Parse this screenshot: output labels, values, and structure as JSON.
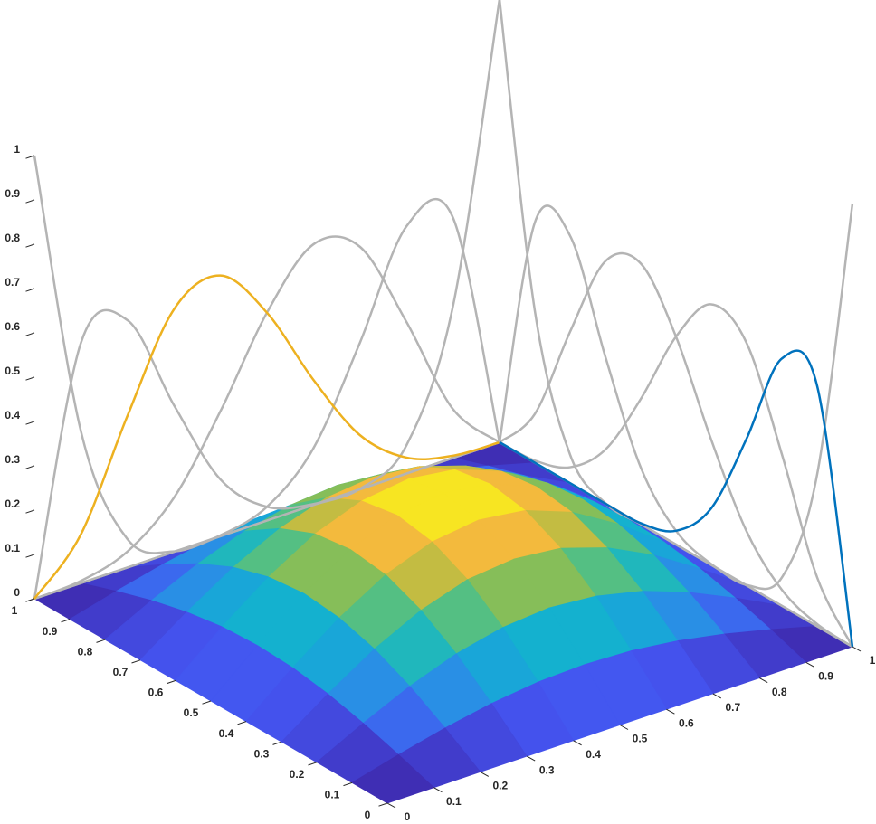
{
  "chart_data": {
    "type": "surface",
    "x": [
      0,
      0.1,
      0.2,
      0.3,
      0.4,
      0.5,
      0.6,
      0.7,
      0.8,
      0.9,
      1
    ],
    "y": [
      0,
      0.1,
      0.2,
      0.3,
      0.4,
      0.5,
      0.6,
      0.7,
      0.8,
      0.9,
      1
    ],
    "z": [
      [
        0,
        0,
        0,
        0,
        0,
        0,
        0,
        0,
        0,
        0,
        0
      ],
      [
        0,
        0.028,
        0.053,
        0.073,
        0.086,
        0.09,
        0.086,
        0.073,
        0.053,
        0.028,
        0
      ],
      [
        0,
        0.053,
        0.101,
        0.139,
        0.163,
        0.172,
        0.163,
        0.139,
        0.101,
        0.053,
        0
      ],
      [
        0,
        0.073,
        0.139,
        0.191,
        0.225,
        0.236,
        0.225,
        0.191,
        0.139,
        0.073,
        0
      ],
      [
        0,
        0.086,
        0.163,
        0.225,
        0.264,
        0.278,
        0.264,
        0.225,
        0.163,
        0.086,
        0
      ],
      [
        0,
        0.09,
        0.172,
        0.236,
        0.278,
        0.292,
        0.278,
        0.236,
        0.172,
        0.09,
        0
      ],
      [
        0,
        0.086,
        0.163,
        0.225,
        0.264,
        0.278,
        0.264,
        0.225,
        0.163,
        0.086,
        0
      ],
      [
        0,
        0.073,
        0.139,
        0.191,
        0.225,
        0.236,
        0.225,
        0.191,
        0.139,
        0.073,
        0
      ],
      [
        0,
        0.053,
        0.101,
        0.139,
        0.163,
        0.172,
        0.163,
        0.139,
        0.101,
        0.053,
        0
      ],
      [
        0,
        0.028,
        0.053,
        0.073,
        0.086,
        0.09,
        0.086,
        0.073,
        0.053,
        0.028,
        0
      ],
      [
        0,
        0,
        0,
        0,
        0,
        0,
        0,
        0,
        0,
        0,
        0
      ]
    ],
    "colormap": [
      "#3e26a8",
      "#4454f0",
      "#2e87ea",
      "#12b0d2",
      "#33c09e",
      "#9fbe45",
      "#f3b93d",
      "#f9fb15"
    ],
    "curves_x": [
      {
        "color": "#b4b4b4",
        "values": [
          1,
          0.343,
          0.064,
          0.001,
          0,
          0,
          0,
          0,
          0,
          0,
          0
        ]
      },
      {
        "color": "#b4b4b4",
        "values": [
          0,
          0.542,
          0.558,
          0.331,
          0.128,
          0.031,
          0.002,
          0,
          0,
          0,
          0
        ]
      },
      {
        "color": "#b4b4b4",
        "values": [
          0,
          0.005,
          0.036,
          0.122,
          0.282,
          0.469,
          0.588,
          0.547,
          0.342,
          0.11,
          0
        ]
      },
      {
        "color": "#b4b4b4",
        "values": [
          0,
          0,
          0,
          0,
          0.002,
          0.031,
          0.128,
          0.331,
          0.558,
          0.542,
          0
        ]
      },
      {
        "color": "#b4b4b4",
        "values": [
          0,
          0,
          0,
          0,
          0,
          0,
          0,
          0.001,
          0.064,
          0.343,
          1
        ]
      },
      {
        "color": "#edb120",
        "values": [
          0,
          0.11,
          0.342,
          0.547,
          0.588,
          0.469,
          0.282,
          0.122,
          0.036,
          0.005,
          0
        ]
      }
    ],
    "curves_y": [
      {
        "color": "#b4b4b4",
        "values": [
          1,
          0.343,
          0.064,
          0.001,
          0,
          0,
          0,
          0,
          0,
          0,
          0
        ]
      },
      {
        "color": "#b4b4b4",
        "values": [
          0,
          0.11,
          0.342,
          0.547,
          0.588,
          0.469,
          0.282,
          0.122,
          0.036,
          0.005,
          0
        ]
      },
      {
        "color": "#b4b4b4",
        "values": [
          0,
          0.005,
          0.036,
          0.122,
          0.282,
          0.469,
          0.588,
          0.547,
          0.342,
          0.11,
          0
        ]
      },
      {
        "color": "#b4b4b4",
        "values": [
          0,
          0,
          0,
          0,
          0.002,
          0.031,
          0.128,
          0.331,
          0.558,
          0.542,
          0
        ]
      },
      {
        "color": "#b4b4b4",
        "values": [
          0,
          0,
          0,
          0,
          0,
          0,
          0,
          0.001,
          0.064,
          0.343,
          1
        ]
      },
      {
        "color": "#0072bd",
        "values": [
          0,
          0.542,
          0.558,
          0.331,
          0.128,
          0.031,
          0.002,
          0,
          0,
          0,
          0
        ]
      }
    ],
    "xlim": [
      0,
      1
    ],
    "ylim": [
      0,
      1
    ],
    "zlim": [
      0,
      1
    ],
    "xticks": [
      0,
      0.1,
      0.2,
      0.3,
      0.4,
      0.5,
      0.6,
      0.7,
      0.8,
      0.9,
      1
    ],
    "yticks": [
      0,
      0.1,
      0.2,
      0.3,
      0.4,
      0.5,
      0.6,
      0.7,
      0.8,
      0.9,
      1
    ],
    "zticks": [
      0,
      0.1,
      0.2,
      0.3,
      0.4,
      0.5,
      0.6,
      0.7,
      0.8,
      0.9,
      1
    ]
  }
}
